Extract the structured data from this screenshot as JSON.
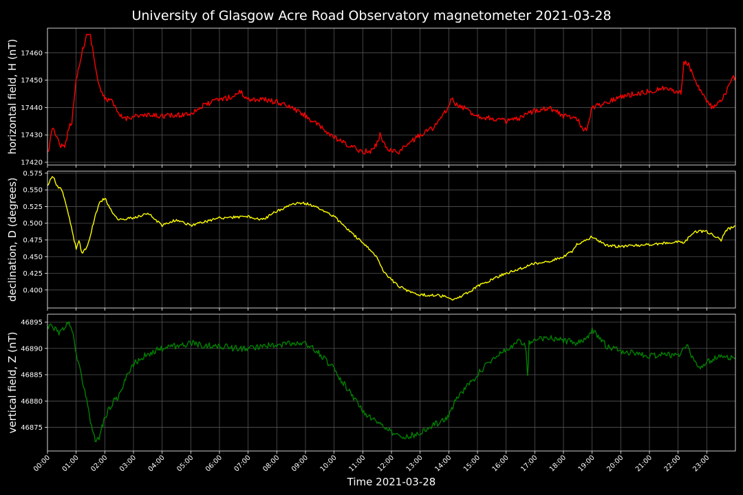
{
  "title": "University of Glasgow Acre Road Observatory magnetometer 2021-03-28",
  "xlabel": "Time 2021-03-28",
  "x_tick_labels": [
    "00:00",
    "01:00",
    "02:00",
    "03:00",
    "04:00",
    "05:00",
    "06:00",
    "07:00",
    "08:00",
    "09:00",
    "10:00",
    "11:00",
    "12:00",
    "13:00",
    "14:00",
    "15:00",
    "16:00",
    "17:00",
    "18:00",
    "19:00",
    "20:00",
    "21:00",
    "22:00",
    "23:00"
  ],
  "chart_data": [
    {
      "type": "line",
      "ylabel": "horizontal field, H (nT)",
      "color": "#ff0000",
      "xlim": [
        0,
        24
      ],
      "ylim": [
        17419,
        17469
      ],
      "yticks": [
        17420,
        17430,
        17440,
        17450,
        17460
      ],
      "ytick_labels": [
        "17420",
        "17430",
        "17440",
        "17450",
        "17460"
      ],
      "grid": true,
      "noise": 1.0,
      "series": [
        {
          "x": [
            0,
            0.1,
            0.2,
            0.4,
            0.6,
            0.75,
            0.85,
            1.0,
            1.15,
            1.3,
            1.4,
            1.5,
            1.6,
            1.75,
            1.9,
            2.0,
            2.2,
            2.5,
            2.75,
            3.0,
            3.5,
            4.0,
            4.5,
            5.0,
            5.5,
            6.0,
            6.5,
            6.7,
            7.0,
            7.5,
            8.0,
            8.5,
            9.0,
            9.5,
            10.0,
            10.5,
            11.0,
            11.3,
            11.5,
            11.6,
            11.8,
            12.0,
            12.3,
            12.5,
            13.0,
            13.5,
            14.0,
            14.1,
            14.2,
            14.5,
            15.0,
            15.5,
            16.0,
            16.5,
            17.0,
            17.5,
            18.0,
            18.5,
            18.7,
            18.8,
            19.0,
            19.5,
            20.0,
            20.5,
            21.0,
            21.5,
            22.0,
            22.1,
            22.2,
            22.4,
            22.6,
            23.0,
            23.2,
            23.5,
            23.7,
            23.9,
            24.0
          ],
          "y": [
            17423,
            17428,
            17433,
            17427,
            17425,
            17433,
            17435,
            17450,
            17458,
            17464,
            17467,
            17466,
            17460,
            17450,
            17445,
            17443,
            17443,
            17437,
            17436,
            17437,
            17437,
            17437,
            17437,
            17438,
            17441,
            17443,
            17444,
            17446,
            17443,
            17443,
            17442,
            17440,
            17437,
            17433,
            17429,
            17426,
            17424,
            17424,
            17427,
            17430,
            17426,
            17424,
            17424,
            17426,
            17430,
            17433,
            17440,
            17444,
            17441,
            17440,
            17437,
            17436,
            17435,
            17436,
            17439,
            17440,
            17437,
            17436,
            17431,
            17432,
            17440,
            17442,
            17444,
            17445,
            17446,
            17447,
            17446,
            17445,
            17457,
            17455,
            17450,
            17442,
            17440,
            17442,
            17446,
            17451,
            17451
          ]
        }
      ]
    },
    {
      "type": "line",
      "ylabel": "declination, D (degrees)",
      "color": "#ffff00",
      "xlim": [
        0,
        24
      ],
      "ylim": [
        0.373,
        0.578
      ],
      "yticks": [
        0.4,
        0.425,
        0.45,
        0.475,
        0.5,
        0.525,
        0.55,
        0.575
      ],
      "ytick_labels": [
        "0.400",
        "0.425",
        "0.450",
        "0.475",
        "0.500",
        "0.525",
        "0.550",
        "0.575"
      ],
      "grid": true,
      "noise": 0.002,
      "series": [
        {
          "x": [
            0,
            0.1,
            0.2,
            0.35,
            0.5,
            0.7,
            0.9,
            1.0,
            1.1,
            1.2,
            1.4,
            1.6,
            1.8,
            2.0,
            2.2,
            2.5,
            3.0,
            3.5,
            4.0,
            4.5,
            5.0,
            5.5,
            6.0,
            7.0,
            7.5,
            8.0,
            8.5,
            8.8,
            9.0,
            9.5,
            10.0,
            10.5,
            11.0,
            11.5,
            11.7,
            12.0,
            12.3,
            12.5,
            13.0,
            13.5,
            14.0,
            14.2,
            14.5,
            15.0,
            15.5,
            16.0,
            16.5,
            17.0,
            17.5,
            18.0,
            18.3,
            18.5,
            18.7,
            19.0,
            19.5,
            20.0,
            21.0,
            21.5,
            22.0,
            22.2,
            22.5,
            22.8,
            23.0,
            23.3,
            23.5,
            23.7,
            24.0
          ],
          "y": [
            0.555,
            0.565,
            0.57,
            0.555,
            0.55,
            0.52,
            0.48,
            0.462,
            0.475,
            0.455,
            0.465,
            0.5,
            0.53,
            0.538,
            0.52,
            0.505,
            0.508,
            0.515,
            0.497,
            0.505,
            0.497,
            0.502,
            0.508,
            0.51,
            0.505,
            0.518,
            0.528,
            0.53,
            0.53,
            0.522,
            0.51,
            0.49,
            0.47,
            0.45,
            0.43,
            0.415,
            0.405,
            0.4,
            0.393,
            0.392,
            0.39,
            0.385,
            0.392,
            0.405,
            0.416,
            0.425,
            0.432,
            0.44,
            0.443,
            0.45,
            0.458,
            0.47,
            0.472,
            0.48,
            0.467,
            0.465,
            0.468,
            0.47,
            0.472,
            0.47,
            0.486,
            0.488,
            0.487,
            0.48,
            0.475,
            0.49,
            0.496
          ]
        }
      ]
    },
    {
      "type": "line",
      "ylabel": "vertical field, Z (nT)",
      "color": "#008000",
      "xlim": [
        0,
        24
      ],
      "ylim": [
        46870.5,
        46896.5
      ],
      "yticks": [
        46875,
        46880,
        46885,
        46890,
        46895
      ],
      "ytick_labels": [
        "46875",
        "46880",
        "46885",
        "46890",
        "46895"
      ],
      "grid": true,
      "noise": 0.6,
      "series": [
        {
          "x": [
            0,
            0.1,
            0.2,
            0.4,
            0.6,
            0.75,
            0.9,
            1.0,
            1.3,
            1.5,
            1.7,
            1.8,
            2.0,
            2.3,
            2.5,
            2.8,
            3.0,
            3.5,
            4.0,
            4.5,
            5.0,
            5.5,
            6.0,
            6.5,
            7.0,
            7.5,
            8.0,
            8.5,
            9.0,
            9.5,
            10.0,
            10.5,
            11.0,
            11.5,
            12.0,
            12.5,
            13.0,
            13.5,
            14.0,
            14.2,
            14.5,
            15.0,
            15.5,
            16.0,
            16.5,
            16.7,
            16.75,
            16.8,
            17.0,
            17.5,
            18.0,
            18.5,
            18.8,
            19.0,
            19.5,
            20.0,
            20.5,
            21.0,
            21.5,
            22.0,
            22.3,
            22.5,
            22.7,
            23.0,
            23.5,
            24.0
          ],
          "y": [
            46894,
            46894.5,
            46894,
            46893,
            46894,
            46895,
            46893,
            46889,
            46882,
            46876,
            46872,
            46873,
            46877,
            46880,
            46881,
            46885,
            46887,
            46889,
            46890,
            46890.5,
            46891,
            46890.5,
            46890.5,
            46890,
            46890,
            46890.5,
            46890.5,
            46891,
            46891,
            46889,
            46886,
            46882,
            46878,
            46876,
            46874,
            46873,
            46874,
            46875.5,
            46877,
            46880,
            46882,
            46885,
            46888,
            46890,
            46891.5,
            46890,
            46884.5,
            46891,
            46891.5,
            46892,
            46891.5,
            46891,
            46892,
            46893.5,
            46890.5,
            46889.5,
            46889,
            46888.5,
            46889,
            46888.5,
            46891,
            46888,
            46886,
            46887.5,
            46888.5,
            46888
          ]
        }
      ]
    }
  ]
}
